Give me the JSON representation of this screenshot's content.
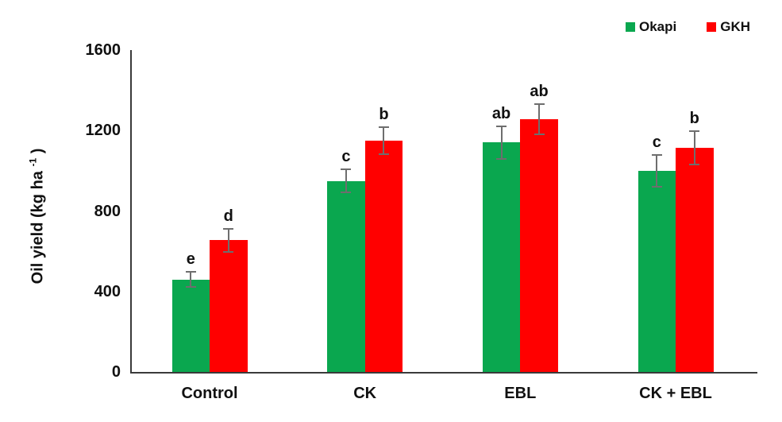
{
  "figure": {
    "ylabel_prefix": "Oil yield (kg ha ",
    "ylabel_sup": "-1",
    "ylabel_suffix": " )"
  },
  "chart_data": {
    "type": "bar",
    "title": "",
    "xlabel": "",
    "ylabel": "Oil yield (kg ha-1)",
    "categories": [
      "Control",
      "CK",
      "EBL",
      "CK + EBL"
    ],
    "series": [
      {
        "name": "Okapi",
        "color": "#0AA74F",
        "values": [
          460,
          950,
          1140,
          1000
        ],
        "errors": [
          38,
          57,
          80,
          80
        ],
        "sig_letters": [
          "e",
          "c",
          "ab",
          "c"
        ]
      },
      {
        "name": "GKH",
        "color": "#FF0000",
        "values": [
          655,
          1150,
          1255,
          1115
        ],
        "errors": [
          57,
          68,
          75,
          82
        ],
        "sig_letters": [
          "d",
          "b",
          "ab",
          "b"
        ]
      }
    ],
    "yticks": [
      0,
      400,
      800,
      1200,
      1600
    ],
    "ylim": [
      0,
      1600
    ],
    "grid": false,
    "legend_position": "top-right",
    "error_bar_color": "#6E6E6E",
    "axis_color": "#3A3A3A",
    "text_color": "#111111"
  }
}
